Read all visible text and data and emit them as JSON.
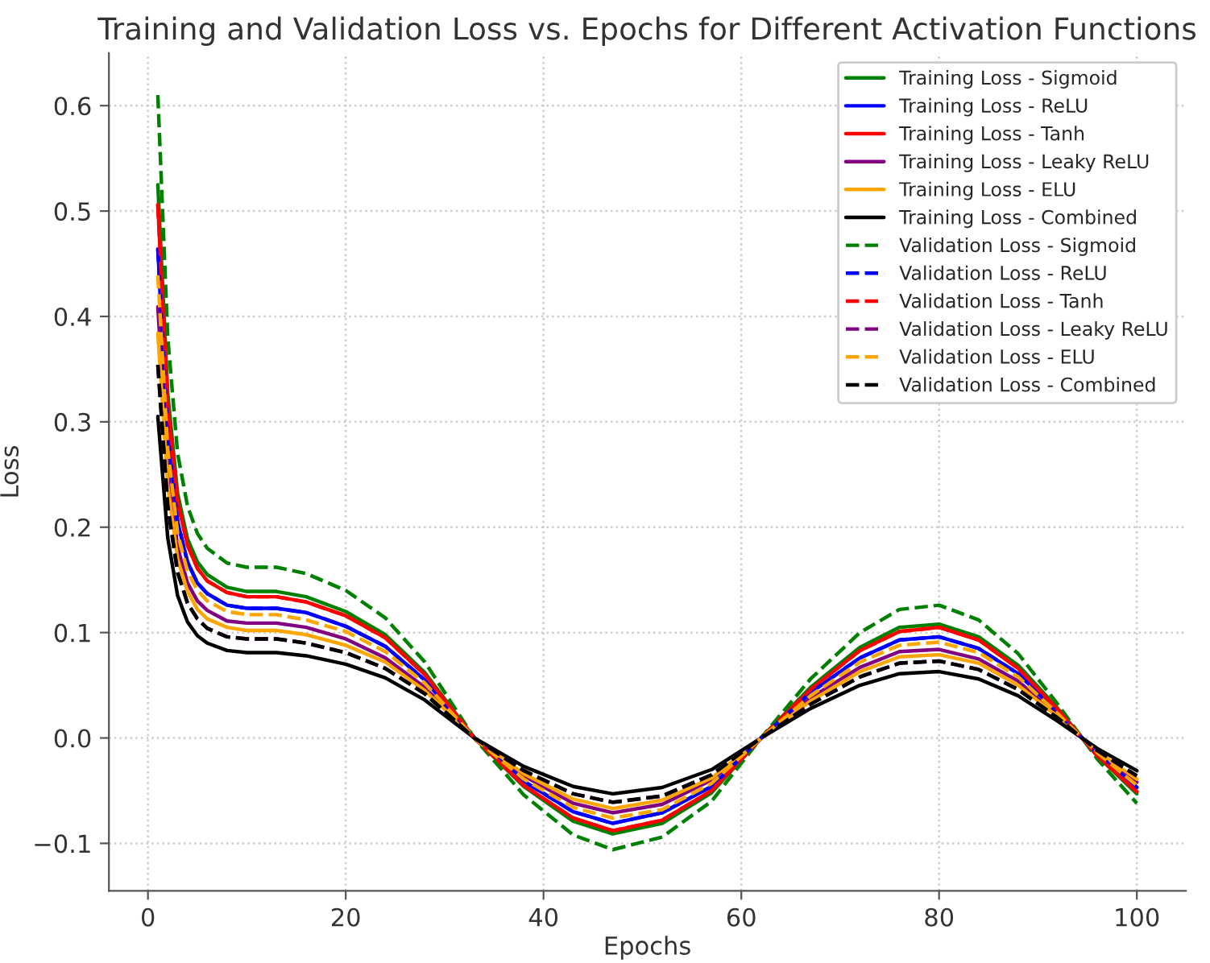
{
  "chart_data": {
    "type": "line",
    "title": "Training and Validation Loss vs. Epochs for Different Activation Functions",
    "xlabel": "Epochs",
    "ylabel": "Loss",
    "x": [
      1,
      2,
      3,
      4,
      5,
      6,
      8,
      10,
      13,
      16,
      20,
      24,
      28,
      33,
      38,
      43,
      47,
      52,
      57,
      62,
      67,
      72,
      76,
      80,
      84,
      88,
      92,
      96,
      100
    ],
    "xlim": [
      -3.95,
      104.95
    ],
    "xticks": [
      0,
      20,
      40,
      60,
      80,
      100
    ],
    "ylim": [
      -0.145,
      0.65
    ],
    "yticks": [
      {
        "value": -0.1,
        "label": "−0.1"
      },
      {
        "value": 0.0,
        "label": "0.0"
      },
      {
        "value": 0.1,
        "label": "0.1"
      },
      {
        "value": 0.2,
        "label": "0.2"
      },
      {
        "value": 0.3,
        "label": "0.3"
      },
      {
        "value": 0.4,
        "label": "0.4"
      },
      {
        "value": 0.5,
        "label": "0.5"
      },
      {
        "value": 0.6,
        "label": "0.6"
      }
    ],
    "grid": true,
    "legend": "top right",
    "marker": "none",
    "series": [
      {
        "name": "Training Loss - Sigmoid",
        "color": "#008000",
        "line_style": "solid",
        "values": [
          0.525,
          0.327,
          0.232,
          0.189,
          0.167,
          0.155,
          0.143,
          0.139,
          0.139,
          0.134,
          0.12,
          0.098,
          0.062,
          0.0,
          -0.046,
          -0.079,
          -0.091,
          -0.081,
          -0.052,
          0.0,
          0.048,
          0.086,
          0.105,
          0.108,
          0.096,
          0.069,
          0.028,
          -0.017,
          -0.053
        ]
      },
      {
        "name": "Training Loss - ReLU",
        "color": "#0000ff",
        "line_style": "solid",
        "values": [
          0.464,
          0.289,
          0.205,
          0.167,
          0.147,
          0.137,
          0.126,
          0.123,
          0.123,
          0.119,
          0.106,
          0.087,
          0.055,
          0.0,
          -0.041,
          -0.07,
          -0.081,
          -0.071,
          -0.046,
          0.0,
          0.043,
          0.076,
          0.093,
          0.096,
          0.085,
          0.061,
          0.024,
          -0.015,
          -0.047
        ]
      },
      {
        "name": "Training Loss - Tanh",
        "color": "#ff0000",
        "line_style": "solid",
        "values": [
          0.506,
          0.315,
          0.224,
          0.183,
          0.161,
          0.149,
          0.138,
          0.134,
          0.134,
          0.129,
          0.116,
          0.095,
          0.06,
          0.0,
          -0.045,
          -0.076,
          -0.088,
          -0.078,
          -0.05,
          0.0,
          0.046,
          0.083,
          0.101,
          0.105,
          0.093,
          0.066,
          0.027,
          -0.017,
          -0.051
        ]
      },
      {
        "name": "Training Loss - Leaky ReLU",
        "color": "#800080",
        "line_style": "solid",
        "values": [
          0.409,
          0.255,
          0.181,
          0.147,
          0.13,
          0.121,
          0.111,
          0.109,
          0.109,
          0.105,
          0.094,
          0.076,
          0.048,
          0.0,
          -0.036,
          -0.062,
          -0.071,
          -0.063,
          -0.04,
          0.0,
          0.038,
          0.067,
          0.082,
          0.084,
          0.075,
          0.054,
          0.021,
          -0.013,
          -0.042
        ]
      },
      {
        "name": "Training Loss - ELU",
        "color": "#ffa500",
        "line_style": "solid",
        "values": [
          0.384,
          0.239,
          0.17,
          0.139,
          0.122,
          0.113,
          0.105,
          0.102,
          0.102,
          0.098,
          0.088,
          0.072,
          0.045,
          0.0,
          -0.034,
          -0.058,
          -0.067,
          -0.059,
          -0.038,
          0.0,
          0.035,
          0.063,
          0.077,
          0.079,
          0.071,
          0.05,
          0.02,
          -0.013,
          -0.039
        ]
      },
      {
        "name": "Training Loss - Combined",
        "color": "#000000",
        "line_style": "solid",
        "values": [
          0.305,
          0.19,
          0.135,
          0.11,
          0.097,
          0.09,
          0.083,
          0.081,
          0.081,
          0.078,
          0.07,
          0.057,
          0.036,
          0.0,
          -0.027,
          -0.046,
          -0.053,
          -0.047,
          -0.03,
          0.0,
          0.028,
          0.05,
          0.061,
          0.063,
          0.056,
          0.04,
          0.016,
          -0.01,
          -0.031
        ]
      },
      {
        "name": "Validation Loss - Sigmoid",
        "color": "#008000",
        "line_style": "dashed",
        "values": [
          0.61,
          0.38,
          0.27,
          0.22,
          0.194,
          0.18,
          0.166,
          0.162,
          0.162,
          0.156,
          0.14,
          0.114,
          0.072,
          0.0,
          -0.054,
          -0.092,
          -0.106,
          -0.094,
          -0.06,
          0.0,
          0.056,
          0.1,
          0.122,
          0.126,
          0.112,
          0.08,
          0.032,
          -0.02,
          -0.062
        ]
      },
      {
        "name": "Validation Loss - ReLU",
        "color": "#0000ff",
        "line_style": "dashed",
        "values": [
          0.464,
          0.289,
          0.205,
          0.167,
          0.147,
          0.137,
          0.126,
          0.123,
          0.123,
          0.119,
          0.106,
          0.087,
          0.055,
          0.0,
          -0.041,
          -0.07,
          -0.081,
          -0.071,
          -0.046,
          0.0,
          0.043,
          0.076,
          0.093,
          0.096,
          0.085,
          0.061,
          0.024,
          -0.015,
          -0.047
        ]
      },
      {
        "name": "Validation Loss - Tanh",
        "color": "#ff0000",
        "line_style": "dashed",
        "values": [
          0.506,
          0.315,
          0.224,
          0.183,
          0.161,
          0.149,
          0.138,
          0.134,
          0.134,
          0.129,
          0.116,
          0.095,
          0.06,
          0.0,
          -0.045,
          -0.076,
          -0.088,
          -0.078,
          -0.05,
          0.0,
          0.046,
          0.083,
          0.101,
          0.105,
          0.093,
          0.066,
          0.027,
          -0.017,
          -0.051
        ]
      },
      {
        "name": "Validation Loss - Leaky ReLU",
        "color": "#800080",
        "line_style": "dashed",
        "values": [
          0.354,
          0.22,
          0.157,
          0.128,
          0.113,
          0.104,
          0.096,
          0.094,
          0.094,
          0.09,
          0.081,
          0.066,
          0.042,
          0.0,
          -0.031,
          -0.053,
          -0.061,
          -0.055,
          -0.035,
          0.0,
          0.032,
          0.058,
          0.071,
          0.073,
          0.065,
          0.046,
          0.019,
          -0.012,
          -0.036
        ]
      },
      {
        "name": "Validation Loss - ELU",
        "color": "#ffa500",
        "line_style": "dashed",
        "values": [
          0.439,
          0.274,
          0.194,
          0.158,
          0.14,
          0.13,
          0.12,
          0.117,
          0.117,
          0.112,
          0.101,
          0.082,
          0.052,
          0.0,
          -0.039,
          -0.066,
          -0.076,
          -0.068,
          -0.043,
          0.0,
          0.04,
          0.072,
          0.088,
          0.091,
          0.081,
          0.058,
          0.023,
          -0.014,
          -0.045
        ]
      },
      {
        "name": "Validation Loss - Combined",
        "color": "#000000",
        "line_style": "dashed",
        "values": [
          0.354,
          0.22,
          0.157,
          0.128,
          0.113,
          0.104,
          0.096,
          0.094,
          0.094,
          0.09,
          0.081,
          0.066,
          0.042,
          0.0,
          -0.031,
          -0.053,
          -0.061,
          -0.055,
          -0.035,
          0.0,
          0.032,
          0.058,
          0.071,
          0.073,
          0.065,
          0.046,
          0.019,
          -0.012,
          -0.036
        ]
      }
    ]
  }
}
